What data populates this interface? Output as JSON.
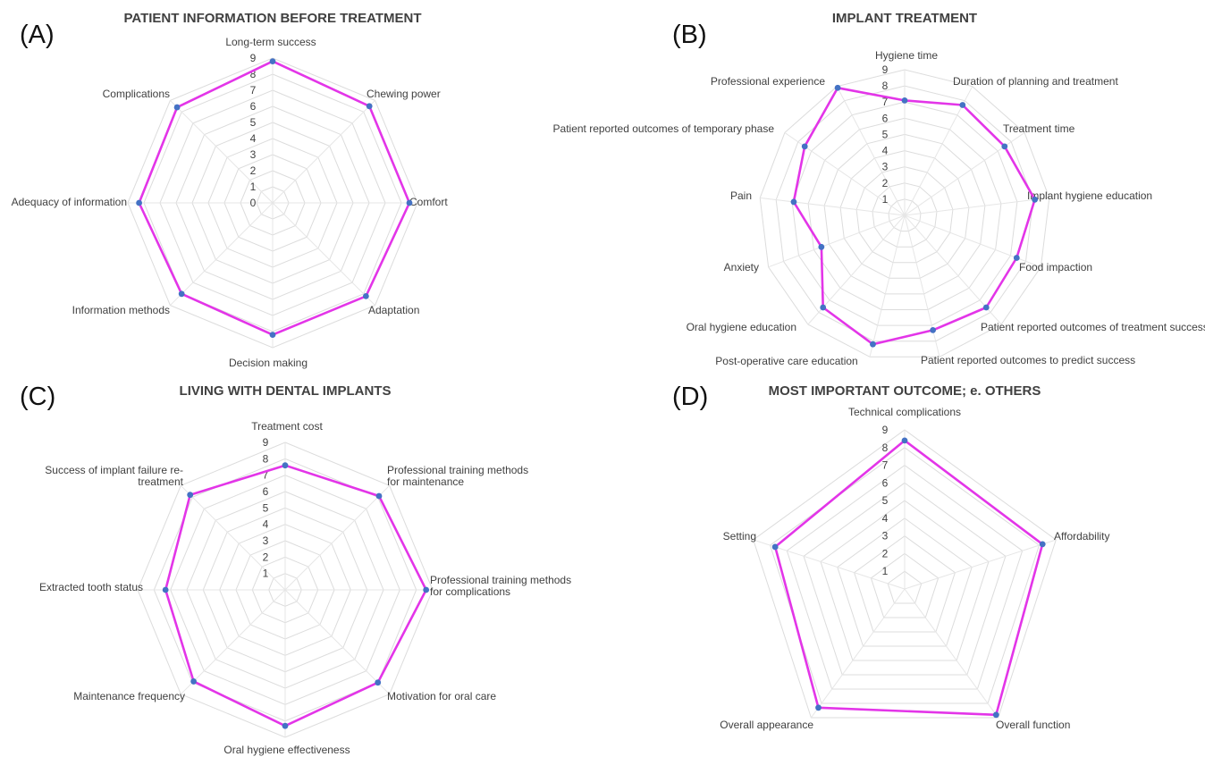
{
  "chart_data": [
    {
      "type": "radar",
      "panel": "(A)",
      "title": "PATIENT INFORMATION BEFORE TREATMENT",
      "axis_min": 0,
      "axis_max": 9,
      "tick_labels": [
        "0",
        "1",
        "2",
        "3",
        "4",
        "5",
        "6",
        "7",
        "8",
        "9"
      ],
      "grid": true,
      "categories": [
        "Long-term success",
        "Chewing power",
        "Comfort",
        "Adaptation",
        "Decision making",
        "Information methods",
        "Adequacy of information",
        "Complications"
      ],
      "values": [
        8.8,
        8.5,
        8.5,
        8.2,
        8.2,
        8.0,
        8.3,
        8.4
      ],
      "colors": {
        "line": "#e335e8",
        "marker": "#4472c4"
      }
    },
    {
      "type": "radar",
      "panel": "(B)",
      "title": "IMPLANT TREATMENT",
      "axis_min": 0,
      "axis_max": 9,
      "tick_labels": [
        "1",
        "2",
        "3",
        "4",
        "5",
        "6",
        "7",
        "8",
        "9"
      ],
      "grid": true,
      "categories": [
        "Hygiene time",
        "Duration of planning and treatment",
        "Treatment time",
        "Implant  hygiene education",
        "Food impaction",
        "Patient reported outcomes of treatment success",
        "Patient reported outcomes to predict success",
        "Post-operative care education",
        "Oral hygiene education",
        "Anxiety",
        "Pain",
        "Patient reported outcomes of temporary phase",
        "Professional experience"
      ],
      "values": [
        7.1,
        7.7,
        7.5,
        8.1,
        7.4,
        7.6,
        7.3,
        8.2,
        7.6,
        5.5,
        6.9,
        7.5,
        8.9
      ],
      "colors": {
        "line": "#e335e8",
        "marker": "#4472c4"
      }
    },
    {
      "type": "radar",
      "panel": "(C)",
      "title": "LIVING WITH DENTAL IMPLANTS",
      "axis_min": 0,
      "axis_max": 9,
      "tick_labels": [
        "1",
        "2",
        "3",
        "4",
        "5",
        "6",
        "7",
        "8",
        "9"
      ],
      "grid": true,
      "categories": [
        "Treatment cost",
        "Professional training methods\nfor maintenance",
        "Professional training methods\nfor complications",
        "Motivation for oral care",
        "Oral hygiene effectiveness",
        "Maintenance frequency",
        "Extracted tooth status",
        "Success of implant failure re-\ntreatment"
      ],
      "values": [
        7.6,
        8.1,
        8.6,
        8.0,
        8.3,
        7.9,
        7.3,
        8.2
      ],
      "colors": {
        "line": "#e335e8",
        "marker": "#4472c4"
      }
    },
    {
      "type": "radar",
      "panel": "(D)",
      "title": "MOST IMPORTANT OUTCOME; e. OTHERS",
      "axis_min": 0,
      "axis_max": 9,
      "tick_labels": [
        "1",
        "2",
        "3",
        "4",
        "5",
        "6",
        "7",
        "8",
        "9"
      ],
      "grid": true,
      "categories": [
        "Technical complications",
        "Affordability",
        "Overall function",
        "Overall appearance",
        "Setting"
      ],
      "values": [
        8.4,
        8.2,
        8.8,
        8.3,
        7.7
      ],
      "colors": {
        "line": "#e335e8",
        "marker": "#4472c4"
      }
    }
  ]
}
